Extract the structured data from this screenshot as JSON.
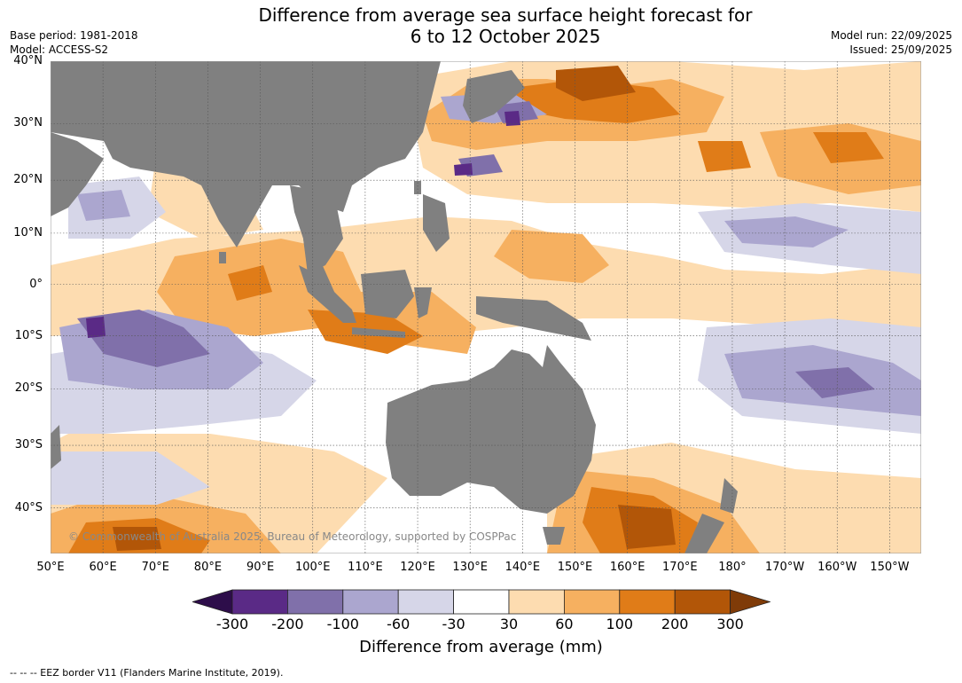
{
  "title": {
    "line1": "Difference from average sea surface height forecast for",
    "line2": "6 to 12 October 2025"
  },
  "meta_left": {
    "base_period": "Base period: 1981-2018",
    "model": "Model: ACCESS-S2"
  },
  "meta_right": {
    "model_run": "Model run: 22/09/2025",
    "issued": "Issued: 25/09/2025"
  },
  "map": {
    "copyright": "© Commonwealth of Australia 2025, Bureau of Meteorology, supported by COSPPac",
    "land_color": "#808080",
    "lat_labels": [
      {
        "label": "40°N",
        "lat": 40
      },
      {
        "label": "30°N",
        "lat": 30
      },
      {
        "label": "20°N",
        "lat": 20
      },
      {
        "label": "10°N",
        "lat": 10
      },
      {
        "label": "0°",
        "lat": 0
      },
      {
        "label": "10°S",
        "lat": -10
      },
      {
        "label": "20°S",
        "lat": -20
      },
      {
        "label": "30°S",
        "lat": -30
      },
      {
        "label": "40°S",
        "lat": -40
      }
    ],
    "lon_labels": [
      {
        "label": "50°E",
        "lon": 50
      },
      {
        "label": "60°E",
        "lon": 60
      },
      {
        "label": "70°E",
        "lon": 70
      },
      {
        "label": "80°E",
        "lon": 80
      },
      {
        "label": "90°E",
        "lon": 90
      },
      {
        "label": "100°E",
        "lon": 100
      },
      {
        "label": "110°E",
        "lon": 110
      },
      {
        "label": "120°E",
        "lon": 120
      },
      {
        "label": "130°E",
        "lon": 130
      },
      {
        "label": "140°E",
        "lon": 140
      },
      {
        "label": "150°E",
        "lon": 150
      },
      {
        "label": "160°E",
        "lon": 160
      },
      {
        "label": "170°E",
        "lon": 170
      },
      {
        "label": "180°",
        "lon": 180
      },
      {
        "label": "170°W",
        "lon": 190
      },
      {
        "label": "160°W",
        "lon": 200
      },
      {
        "label": "150°W",
        "lon": 210
      }
    ]
  },
  "colorbar": {
    "title": "Difference from average (mm)",
    "ticks": [
      "-300",
      "-200",
      "-100",
      "-60",
      "-30",
      "30",
      "60",
      "100",
      "200",
      "300"
    ],
    "colors": [
      "#2d0d4a",
      "#5a2a86",
      "#8070aa",
      "#aba6cf",
      "#d6d6e8",
      "#ffffff",
      "#fddcb0",
      "#f6b060",
      "#e07c18",
      "#b25608",
      "#7f3b08"
    ]
  },
  "footer": "--  --  -- EEZ border V11 (Flanders Marine Institute, 2019)."
}
